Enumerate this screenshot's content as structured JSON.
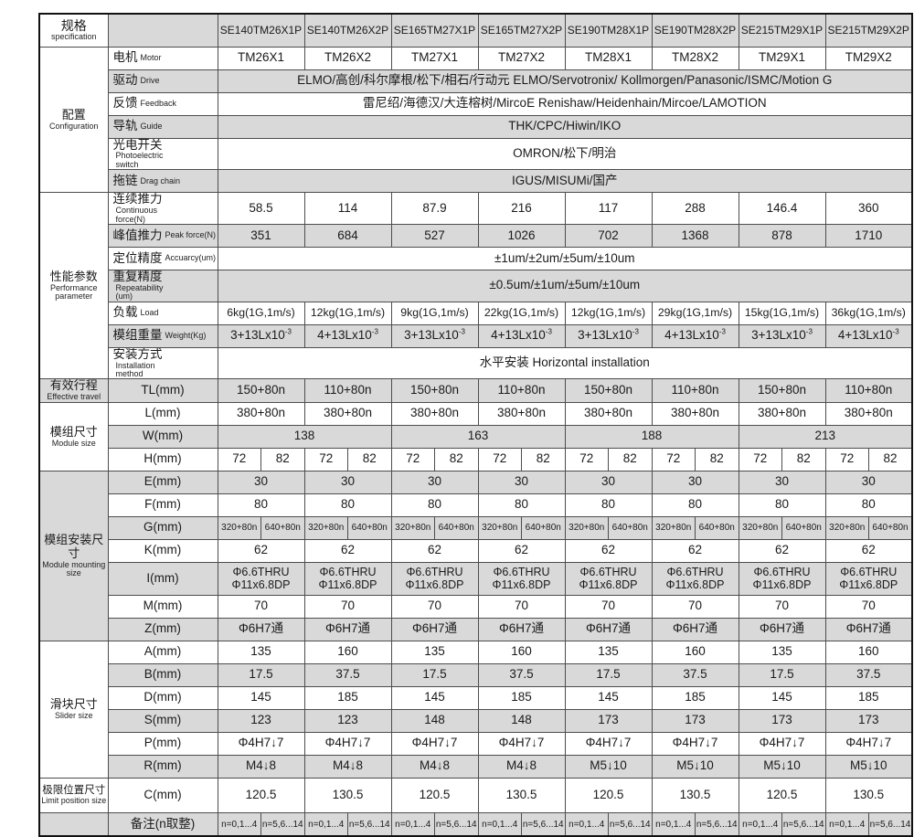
{
  "colors": {
    "shaded": "#d9d9d9",
    "border": "#4d4d4d",
    "text": "#1a1a1a",
    "background": "#ffffff"
  },
  "table": {
    "header": {
      "group_zh": "规格",
      "group_en": "specification",
      "columns": [
        "SE140TM26X1P",
        "SE140TM26X2P",
        "SE165TM27X1P",
        "SE165TM27X2P",
        "SE190TM28X1P",
        "SE190TM28X2P",
        "SE215TM29X1P",
        "SE215TM29X2P"
      ]
    },
    "rows": [
      {
        "id": "motor",
        "group": {
          "zh": "配置",
          "en": "Configuration",
          "rows": 6
        },
        "label": {
          "zh": "电机",
          "en": "Motor"
        },
        "shaded": false,
        "cells": [
          "TM26X1",
          "TM26X2",
          "TM27X1",
          "TM27X2",
          "TM28X1",
          "TM28X2",
          "TM29X1",
          "TM29X2"
        ]
      },
      {
        "id": "drive",
        "label": {
          "zh": "驱动",
          "en": "Drive"
        },
        "shaded": true,
        "span": 16,
        "cells": [
          "ELMO/高创/科尔摩根/松下/相石/行动元  ELMO/Servotronix/ Kollmorgen/Panasonic/ISMC/Motion  G"
        ]
      },
      {
        "id": "feedback",
        "label": {
          "zh": "反馈",
          "en": "Feedback"
        },
        "shaded": false,
        "span": 16,
        "cells": [
          "雷尼绍/海德汉/大连榕树/MircoE Renishaw/Heidenhain/Mircoe/LAMOTION"
        ]
      },
      {
        "id": "guide",
        "label": {
          "zh": "导轨",
          "en": "Guide"
        },
        "shaded": true,
        "span": 16,
        "cells": [
          "THK/CPC/Hiwin/IKO"
        ]
      },
      {
        "id": "photoswitch",
        "label": {
          "zh": "光电开关",
          "en": "Photoelectric switch"
        },
        "shaded": false,
        "span": 16,
        "cells": [
          "OMRON/松下/明治"
        ]
      },
      {
        "id": "dragchain",
        "label": {
          "zh": "拖链",
          "en": "Drag chain"
        },
        "shaded": true,
        "span": 16,
        "cells": [
          "IGUS/MISUMi/国产"
        ]
      },
      {
        "id": "contforce",
        "group": {
          "zh": "性能参数",
          "en": "Performance parameter",
          "rows": 7
        },
        "label": {
          "zh": "连续推力",
          "en": "Continuous force(N)"
        },
        "shaded": false,
        "cells": [
          "58.5",
          "114",
          "87.9",
          "216",
          "117",
          "288",
          "146.4",
          "360"
        ]
      },
      {
        "id": "peakforce",
        "label": {
          "zh": "峰值推力",
          "en": "Peak force(N)"
        },
        "shaded": true,
        "cells": [
          "351",
          "684",
          "527",
          "1026",
          "702",
          "1368",
          "878",
          "1710"
        ]
      },
      {
        "id": "accuracy",
        "label": {
          "zh": "定位精度",
          "en": "Accuarcy(um)"
        },
        "shaded": false,
        "span": 16,
        "cells": [
          "±1um/±2um/±5um/±10um"
        ]
      },
      {
        "id": "repeatability",
        "label": {
          "zh": "重复精度",
          "en": "Repeatability (um)"
        },
        "shaded": true,
        "span": 16,
        "cells": [
          "±0.5um/±1um/±5um/±10um"
        ]
      },
      {
        "id": "load",
        "label": {
          "zh": "负载",
          "en": "Load"
        },
        "shaded": false,
        "fs": "md",
        "cells": [
          "6kg(1G,1m/s)",
          "12kg(1G,1m/s)",
          "9kg(1G,1m/s)",
          "22kg(1G,1m/s)",
          "12kg(1G,1m/s)",
          "29kg(1G,1m/s)",
          "15kg(1G,1m/s)",
          "36kg(1G,1m/s)"
        ]
      },
      {
        "id": "weight",
        "label": {
          "zh": "模组重量",
          "en": "Weight(Kg)"
        },
        "shaded": true,
        "cells": [
          {
            "t": "3+13Lx10",
            "sup": "-3"
          },
          {
            "t": "4+13Lx10",
            "sup": "-3"
          },
          {
            "t": "3+13Lx10",
            "sup": "-3"
          },
          {
            "t": "4+13Lx10",
            "sup": "-3"
          },
          {
            "t": "3+13Lx10",
            "sup": "-3"
          },
          {
            "t": "4+13Lx10",
            "sup": "-3"
          },
          {
            "t": "3+13Lx10",
            "sup": "-3"
          },
          {
            "t": "4+13Lx10",
            "sup": "-3"
          }
        ]
      },
      {
        "id": "install",
        "label": {
          "zh": "安装方式",
          "en": "Installation method"
        },
        "shaded": false,
        "span": 16,
        "cells": [
          "水平安装  Horizontal installation"
        ]
      },
      {
        "id": "tl",
        "group": {
          "zh": "有效行程",
          "en": "Effective travel",
          "rows": 1
        },
        "label": {
          "zh": "TL(mm)",
          "en": ""
        },
        "shaded": true,
        "cells": [
          "150+80n",
          "110+80n",
          "150+80n",
          "110+80n",
          "150+80n",
          "110+80n",
          "150+80n",
          "110+80n"
        ]
      },
      {
        "id": "l",
        "group": {
          "zh": "模组尺寸",
          "en": "Module size",
          "rows": 3
        },
        "label": {
          "zh": "L(mm)",
          "en": ""
        },
        "shaded": false,
        "cells": [
          "380+80n",
          "380+80n",
          "380+80n",
          "380+80n",
          "380+80n",
          "380+80n",
          "380+80n",
          "380+80n"
        ]
      },
      {
        "id": "w",
        "label": {
          "zh": "W(mm)",
          "en": ""
        },
        "shaded": true,
        "span": 4,
        "cells": [
          "138",
          "163",
          "188",
          "213"
        ]
      },
      {
        "id": "h",
        "label": {
          "zh": "H(mm)",
          "en": ""
        },
        "shaded": false,
        "span": 1,
        "cells": [
          "72",
          "82",
          "72",
          "82",
          "72",
          "82",
          "72",
          "82",
          "72",
          "82",
          "72",
          "82",
          "72",
          "82",
          "72",
          "82"
        ]
      },
      {
        "id": "e",
        "group": {
          "zh": "模组安装尺寸",
          "en": "Module mounting size",
          "rows": 7
        },
        "label": {
          "zh": "E(mm)",
          "en": ""
        },
        "shaded": true,
        "cells": [
          "30",
          "30",
          "30",
          "30",
          "30",
          "30",
          "30",
          "30"
        ]
      },
      {
        "id": "f",
        "label": {
          "zh": "F(mm)",
          "en": ""
        },
        "shaded": false,
        "cells": [
          "80",
          "80",
          "80",
          "80",
          "80",
          "80",
          "80",
          "80"
        ]
      },
      {
        "id": "g",
        "label": {
          "zh": "G(mm)",
          "en": ""
        },
        "shaded": true,
        "span": 1,
        "fs": "sm",
        "cells": [
          "320+80n",
          "640+80n",
          "320+80n",
          "640+80n",
          "320+80n",
          "640+80n",
          "320+80n",
          "640+80n",
          "320+80n",
          "640+80n",
          "320+80n",
          "640+80n",
          "320+80n",
          "640+80n",
          "320+80n",
          "640+80n"
        ]
      },
      {
        "id": "k",
        "label": {
          "zh": "K(mm)",
          "en": ""
        },
        "shaded": false,
        "cells": [
          "62",
          "62",
          "62",
          "62",
          "62",
          "62",
          "62",
          "62"
        ]
      },
      {
        "id": "i",
        "h": "i",
        "label": {
          "zh": "I(mm)",
          "en": ""
        },
        "shaded": true,
        "cells": [
          {
            "lines": [
              "Φ6.6THRU",
              "Φ11x6.8DP"
            ]
          },
          {
            "lines": [
              "Φ6.6THRU",
              "Φ11x6.8DP"
            ]
          },
          {
            "lines": [
              "Φ6.6THRU",
              "Φ11x6.8DP"
            ]
          },
          {
            "lines": [
              "Φ6.6THRU",
              "Φ11x6.8DP"
            ]
          },
          {
            "lines": [
              "Φ6.6THRU",
              "Φ11x6.8DP"
            ]
          },
          {
            "lines": [
              "Φ6.6THRU",
              "Φ11x6.8DP"
            ]
          },
          {
            "lines": [
              "Φ6.6THRU",
              "Φ11x6.8DP"
            ]
          },
          {
            "lines": [
              "Φ6.6THRU",
              "Φ11x6.8DP"
            ]
          }
        ]
      },
      {
        "id": "m",
        "label": {
          "zh": "M(mm)",
          "en": ""
        },
        "shaded": false,
        "cells": [
          "70",
          "70",
          "70",
          "70",
          "70",
          "70",
          "70",
          "70"
        ]
      },
      {
        "id": "z",
        "label": {
          "zh": "Z(mm)",
          "en": ""
        },
        "shaded": true,
        "cells": [
          "Φ6H7通",
          "Φ6H7通",
          "Φ6H7通",
          "Φ6H7通",
          "Φ6H7通",
          "Φ6H7通",
          "Φ6H7通",
          "Φ6H7通"
        ]
      },
      {
        "id": "a",
        "group": {
          "zh": "滑块尺寸",
          "en": "Slider size",
          "rows": 6
        },
        "label": {
          "zh": "A(mm)",
          "en": ""
        },
        "shaded": false,
        "cells": [
          "135",
          "160",
          "135",
          "160",
          "135",
          "160",
          "135",
          "160"
        ]
      },
      {
        "id": "b",
        "label": {
          "zh": "B(mm)",
          "en": ""
        },
        "shaded": true,
        "cells": [
          "17.5",
          "37.5",
          "17.5",
          "37.5",
          "17.5",
          "37.5",
          "17.5",
          "37.5"
        ]
      },
      {
        "id": "d",
        "label": {
          "zh": "D(mm)",
          "en": ""
        },
        "shaded": false,
        "cells": [
          "145",
          "185",
          "145",
          "185",
          "145",
          "185",
          "145",
          "185"
        ]
      },
      {
        "id": "s",
        "label": {
          "zh": "S(mm)",
          "en": ""
        },
        "shaded": true,
        "cells": [
          "123",
          "123",
          "148",
          "148",
          "173",
          "173",
          "173",
          "173"
        ]
      },
      {
        "id": "p",
        "label": {
          "zh": "P(mm)",
          "en": ""
        },
        "shaded": false,
        "cells": [
          "Φ4H7↓7",
          "Φ4H7↓7",
          "Φ4H7↓7",
          "Φ4H7↓7",
          "Φ4H7↓7",
          "Φ4H7↓7",
          "Φ4H7↓7",
          "Φ4H7↓7"
        ]
      },
      {
        "id": "r",
        "label": {
          "zh": "R(mm)",
          "en": ""
        },
        "shaded": true,
        "cells": [
          "M4↓8",
          "M4↓8",
          "M4↓8",
          "M4↓8",
          "M5↓10",
          "M5↓10",
          "M5↓10",
          "M5↓10"
        ]
      },
      {
        "id": "c",
        "h": "c",
        "group": {
          "zh": "极限位置尺寸",
          "en": "Limit position size",
          "rows": 1,
          "small": true
        },
        "label": {
          "zh": "C(mm)",
          "en": ""
        },
        "shaded": false,
        "cells": [
          "120.5",
          "130.5",
          "120.5",
          "130.5",
          "120.5",
          "130.5",
          "120.5",
          "130.5"
        ]
      },
      {
        "id": "remark",
        "h": "rem",
        "group": {
          "zh": "",
          "en": "",
          "rows": 1
        },
        "label": {
          "zh": "备注(n取整)",
          "en": ""
        },
        "shaded": true,
        "span": 1,
        "fs": "sm",
        "cells": [
          "n=0,1...4",
          "n=5,6...14",
          "n=0,1...4",
          "n=5,6...14",
          "n=0,1...4",
          "n=5,6...14",
          "n=0,1...4",
          "n=5,6...14",
          "n=0,1...4",
          "n=5,6...14",
          "n=0,1...4",
          "n=5,6...14",
          "n=0,1...4",
          "n=5,6...14",
          "n=0,1...4",
          "n=5,6...14"
        ]
      }
    ]
  }
}
